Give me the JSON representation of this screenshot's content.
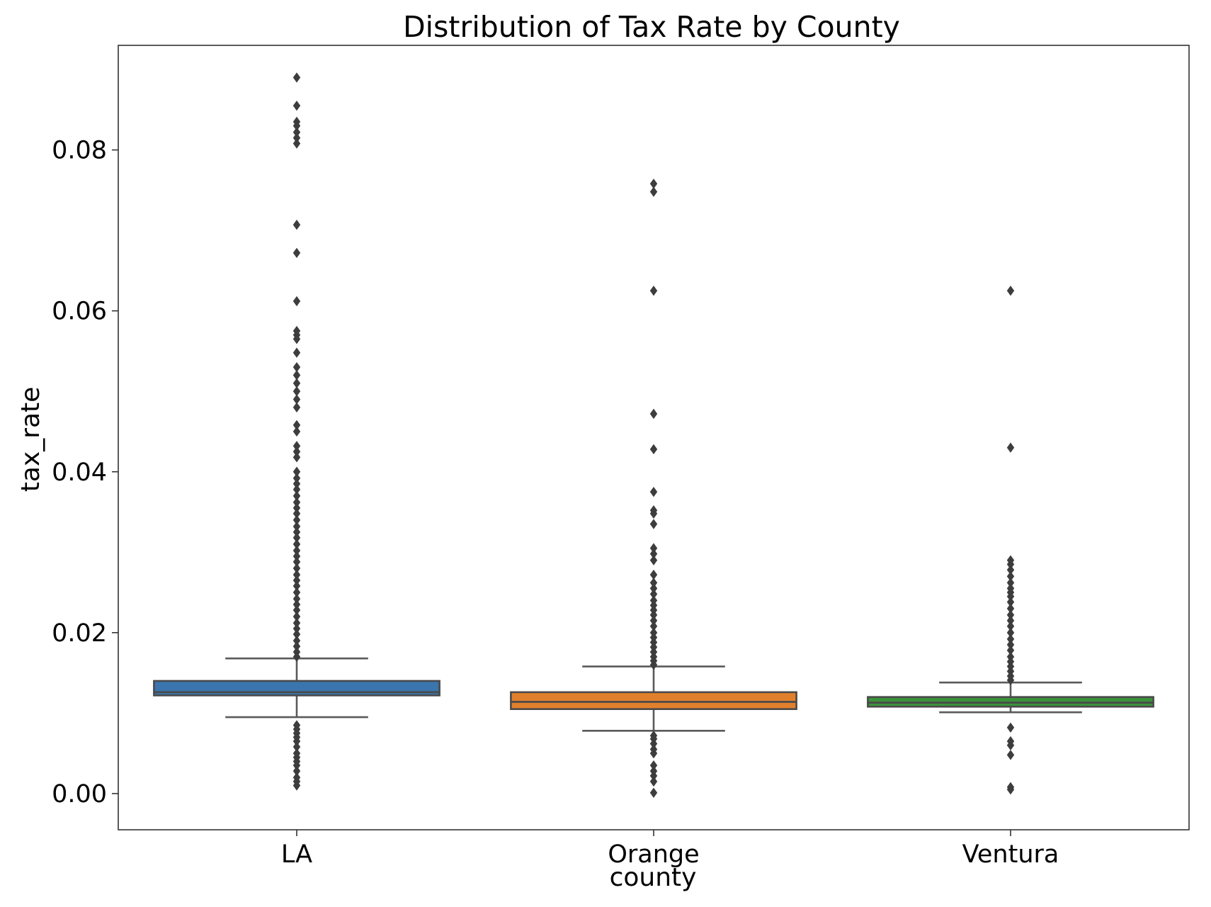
{
  "chart_data": {
    "type": "box",
    "title": "Distribution of Tax Rate by County",
    "xlabel": "county",
    "ylabel": "tax_rate",
    "ylim": [
      -0.0045,
      0.093
    ],
    "yticks": [
      0.0,
      0.02,
      0.04,
      0.06,
      0.08
    ],
    "ytick_labels": [
      "0.00",
      "0.02",
      "0.04",
      "0.06",
      "0.08"
    ],
    "grid": false,
    "legend": "none",
    "categories": [
      "LA",
      "Orange",
      "Ventura"
    ],
    "boxes": [
      {
        "name": "LA",
        "color": "#3a75ae",
        "whisker_low": 0.0095,
        "q1": 0.0122,
        "median": 0.0126,
        "q3": 0.014,
        "whisker_high": 0.0168,
        "outliers_high": [
          0.089,
          0.0855,
          0.0835,
          0.083,
          0.0822,
          0.0815,
          0.0808,
          0.0707,
          0.0672,
          0.0612,
          0.0575,
          0.057,
          0.0565,
          0.0548,
          0.053,
          0.052,
          0.051,
          0.05,
          0.049,
          0.048,
          0.0458,
          0.045,
          0.0432,
          0.0425,
          0.0418,
          0.04,
          0.0392,
          0.0385,
          0.0378,
          0.037,
          0.0362,
          0.0355,
          0.0348,
          0.034,
          0.0332,
          0.0325,
          0.0318,
          0.031,
          0.0302,
          0.0295,
          0.0288,
          0.028,
          0.0272,
          0.0265,
          0.0258,
          0.025,
          0.0242,
          0.0235,
          0.0228,
          0.022,
          0.0212,
          0.0205,
          0.0198,
          0.019,
          0.0183,
          0.0176,
          0.017
        ],
        "outliers_low": [
          0.0085,
          0.008,
          0.0075,
          0.007,
          0.0065,
          0.0058,
          0.005,
          0.0045,
          0.004,
          0.0035,
          0.0028,
          0.002,
          0.0015,
          0.001
        ]
      },
      {
        "name": "Orange",
        "color": "#e1802c",
        "whisker_low": 0.0078,
        "q1": 0.0105,
        "median": 0.0114,
        "q3": 0.0126,
        "whisker_high": 0.0158,
        "outliers_high": [
          0.0758,
          0.0748,
          0.0625,
          0.0472,
          0.0428,
          0.0375,
          0.0352,
          0.0348,
          0.0335,
          0.0305,
          0.0298,
          0.029,
          0.0272,
          0.0262,
          0.0255,
          0.0248,
          0.024,
          0.0234,
          0.0228,
          0.0222,
          0.0215,
          0.0208,
          0.02,
          0.0194,
          0.0188,
          0.0182,
          0.0176,
          0.017,
          0.0165,
          0.016
        ],
        "outliers_low": [
          0.0072,
          0.0068,
          0.0062,
          0.0055,
          0.005,
          0.0035,
          0.0028,
          0.0022,
          0.0015,
          0.0001
        ]
      },
      {
        "name": "Ventura",
        "color": "#3a923a",
        "whisker_low": 0.0101,
        "q1": 0.0108,
        "median": 0.0113,
        "q3": 0.012,
        "whisker_high": 0.0138,
        "outliers_high": [
          0.0625,
          0.043,
          0.029,
          0.0285,
          0.0278,
          0.027,
          0.0262,
          0.0255,
          0.025,
          0.0245,
          0.0238,
          0.023,
          0.0222,
          0.0215,
          0.0208,
          0.02,
          0.0192,
          0.0185,
          0.0178,
          0.017,
          0.0164,
          0.0158,
          0.0152,
          0.0146,
          0.0141
        ],
        "outliers_low": [
          0.0082,
          0.0065,
          0.006,
          0.0048,
          0.0008,
          0.0005
        ]
      }
    ]
  }
}
